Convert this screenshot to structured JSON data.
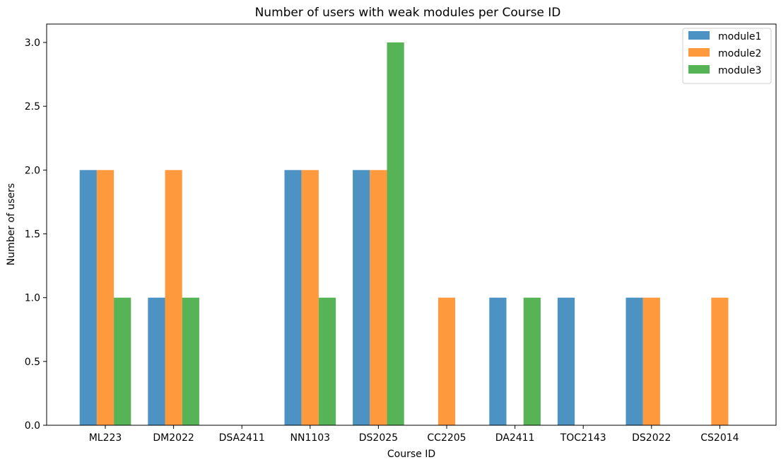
{
  "chart_data": {
    "type": "bar",
    "title": "Number of users with weak modules per Course ID",
    "xlabel": "Course ID",
    "ylabel": "Number of users",
    "categories": [
      "ML223",
      "DM2022",
      "DSA2411",
      "NN1103",
      "DS2025",
      "CC2205",
      "DA2411",
      "TOC2143",
      "DS2022",
      "CS2014"
    ],
    "ylim": [
      0,
      3.0
    ],
    "yticks": [
      "0.0",
      "0.5",
      "1.0",
      "1.5",
      "2.0",
      "2.5",
      "3.0"
    ],
    "grid": false,
    "legend_position": "top-right",
    "series": [
      {
        "name": "module1",
        "color": "#4c92c3",
        "values": [
          2,
          1,
          0,
          2,
          2,
          0,
          1,
          1,
          1,
          0
        ]
      },
      {
        "name": "module2",
        "color": "#ff993e",
        "values": [
          2,
          2,
          0,
          2,
          2,
          1,
          0,
          0,
          1,
          1
        ]
      },
      {
        "name": "module3",
        "color": "#56b356",
        "values": [
          1,
          1,
          0,
          1,
          3,
          0,
          1,
          0,
          0,
          0
        ]
      }
    ]
  }
}
